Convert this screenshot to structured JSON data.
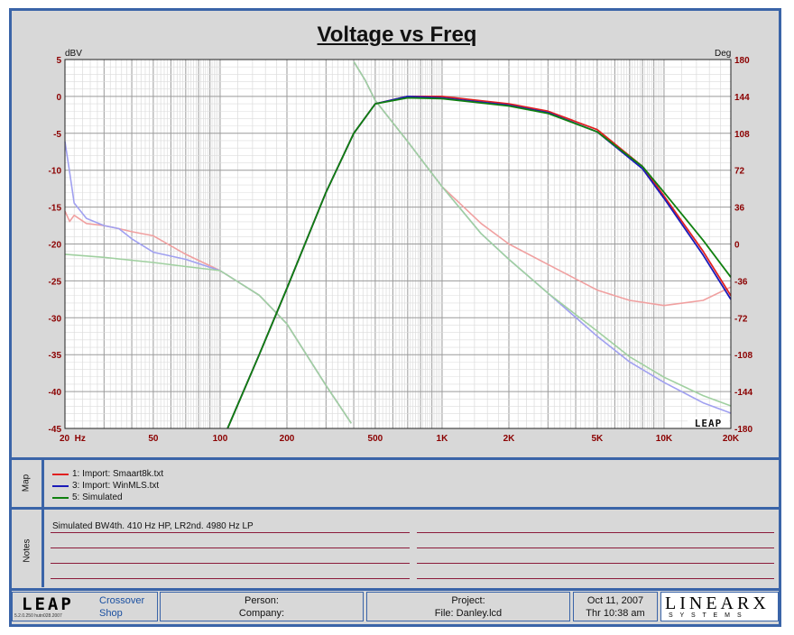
{
  "title": "Voltage vs Freq",
  "chart_data": {
    "type": "line",
    "title": "Voltage vs Freq",
    "x_scale": "log",
    "xlim": [
      20,
      20000
    ],
    "ylim": [
      -45,
      5
    ],
    "ylim_right": [
      -180,
      180
    ],
    "ylabel": "dBV",
    "ylabel_right": "Deg",
    "x_ticks": [
      "20  Hz",
      "50",
      "100",
      "200",
      "500",
      "1K",
      "2K",
      "5K",
      "10K",
      "20K"
    ],
    "y_ticks": [
      "5",
      "0",
      "-5",
      "-10",
      "-15",
      "-20",
      "-25",
      "-30",
      "-35",
      "-40",
      "-45"
    ],
    "y_ticks_right": [
      "180",
      "144",
      "108",
      "72",
      "36",
      "0",
      "-36",
      "-72",
      "-108",
      "-144",
      "-180"
    ],
    "grid": true,
    "logo_text": "LEAP",
    "series": [
      {
        "name": "1: Import: Smaart8k.txt",
        "kind": "magnitude",
        "color": "#e02020",
        "x": [
          108,
          150,
          200,
          300,
          400,
          500,
          700,
          1000,
          2000,
          3000,
          5000,
          8000,
          10000,
          15000,
          20000
        ],
        "y": [
          -45,
          -35,
          -26,
          -13,
          -5,
          -1,
          0,
          0,
          -1,
          -2,
          -4.5,
          -9.5,
          -13.5,
          -21,
          -27
        ]
      },
      {
        "name": "3: Import: WinMLS.txt",
        "kind": "magnitude",
        "color": "#1a1ab8",
        "x": [
          108,
          150,
          200,
          300,
          400,
          500,
          700,
          1000,
          2000,
          3000,
          5000,
          8000,
          10000,
          15000,
          20000
        ],
        "y": [
          -45,
          -35,
          -26,
          -13,
          -5,
          -1,
          0,
          -0.2,
          -1.2,
          -2.2,
          -4.8,
          -9.8,
          -13.8,
          -21.5,
          -27.5
        ]
      },
      {
        "name": "5: Simulated",
        "kind": "magnitude",
        "color": "#108010",
        "x": [
          108,
          150,
          200,
          300,
          400,
          500,
          700,
          1000,
          2000,
          3000,
          5000,
          8000,
          10000,
          15000,
          20000
        ],
        "y": [
          -45,
          -35,
          -26,
          -13,
          -5,
          -1,
          -0.2,
          -0.3,
          -1.3,
          -2.3,
          -4.8,
          -9.5,
          -13,
          -19.5,
          -24.5
        ]
      },
      {
        "name": "Smaart8k phase",
        "kind": "phase",
        "color": "#f0a0a0",
        "x": [
          20,
          21,
          22,
          25,
          30,
          35,
          40,
          50,
          70,
          100,
          150,
          200,
          300,
          390,
          400,
          450,
          500,
          700,
          1000,
          1500,
          2000,
          3000,
          5000,
          7000,
          10000,
          15000,
          20000
        ],
        "y": [
          32,
          22,
          28,
          20,
          18,
          15,
          12,
          8,
          -10,
          -26,
          -50,
          -78,
          -138,
          -175,
          178,
          160,
          140,
          100,
          56,
          20,
          0,
          -20,
          -45,
          -55,
          -60,
          -55,
          -42
        ]
      },
      {
        "name": "WinMLS phase",
        "kind": "phase",
        "color": "#a0a0f0",
        "x": [
          20,
          20.5,
          21,
          22,
          25,
          30,
          35,
          40,
          50,
          70,
          100,
          150,
          200,
          300,
          390,
          400,
          450,
          500,
          700,
          1000,
          1500,
          2000,
          3000,
          5000,
          7000,
          10000,
          15000,
          20000
        ],
        "y": [
          100,
          85,
          70,
          40,
          25,
          18,
          15,
          5,
          -8,
          -15,
          -26,
          -50,
          -78,
          -138,
          -175,
          178,
          160,
          140,
          100,
          56,
          10,
          -15,
          -48,
          -90,
          -115,
          -135,
          -155,
          -165
        ]
      },
      {
        "name": "Simulated phase",
        "kind": "phase",
        "color": "#a0d0a0",
        "x": [
          20,
          30,
          50,
          70,
          100,
          150,
          200,
          300,
          390,
          400,
          450,
          500,
          700,
          1000,
          1500,
          2000,
          3000,
          5000,
          7000,
          10000,
          15000,
          20000
        ],
        "y": [
          -10,
          -13,
          -18,
          -22,
          -26,
          -50,
          -78,
          -138,
          -175,
          178,
          160,
          140,
          100,
          56,
          10,
          -15,
          -48,
          -85,
          -110,
          -130,
          -148,
          -158
        ]
      }
    ]
  },
  "map": {
    "label": "Map",
    "items": [
      {
        "text": "1: Import: Smaart8k.txt",
        "color": "#e02020"
      },
      {
        "text": "3: Import: WinMLS.txt",
        "color": "#1a1ab8"
      },
      {
        "text": "5: Simulated",
        "color": "#108010"
      }
    ]
  },
  "notes": {
    "label": "Notes",
    "text": "Simulated BW4th. 410 Hz HP, LR2nd. 4980 Hz LP"
  },
  "footer": {
    "logo": "LEAP",
    "version": "5.2.0.250  hutn028.2007",
    "app_line1": "Crossover",
    "app_line2": "Shop",
    "person_label": "Person:",
    "company_label": "Company:",
    "project_label": "Project:",
    "file_label": "File: Danley.lcd",
    "date": "Oct 11, 2007",
    "time": "Thr 10:38 am",
    "brand": "LINEARX",
    "brand_sub": "S Y S T E M S"
  }
}
